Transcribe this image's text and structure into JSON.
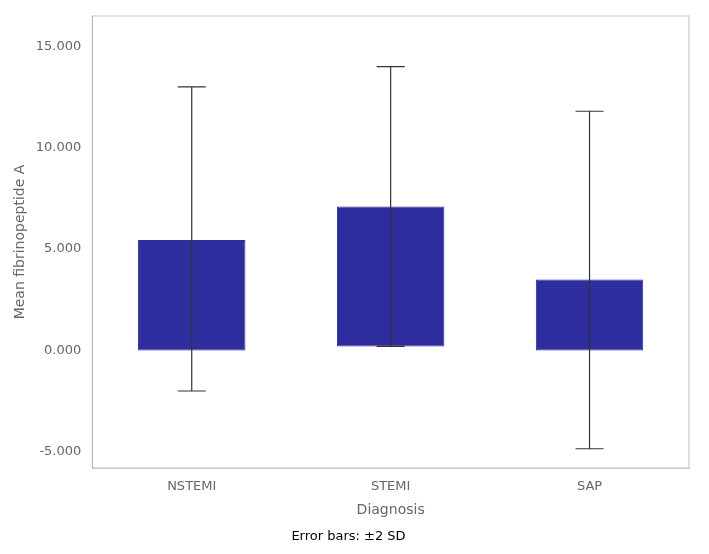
{
  "chart_data": {
    "type": "bar",
    "categories": [
      "NSTEMI",
      "STEMI",
      "SAP"
    ],
    "bottoms": [
      0.0,
      0.2,
      0.0
    ],
    "values": [
      5.45,
      7.1,
      3.5
    ],
    "error_lower": [
      -2.0,
      0.2,
      -4.85
    ],
    "error_upper": [
      13.0,
      14.0,
      11.8
    ],
    "color": "#2d2d9e",
    "xlabel": "Diagnosis",
    "ylabel": "Mean fibrinopeptide A",
    "subtitle": "Error bars: ±2 SD",
    "ylim": [
      -5.8,
      16.5
    ],
    "yticks": [
      {
        "value": -5,
        "label": "-5.000"
      },
      {
        "value": 0,
        "label": "0.000"
      },
      {
        "value": 5,
        "label": "5.000"
      },
      {
        "value": 10,
        "label": "10.000"
      },
      {
        "value": 15,
        "label": "15.000"
      }
    ],
    "grid": false
  }
}
